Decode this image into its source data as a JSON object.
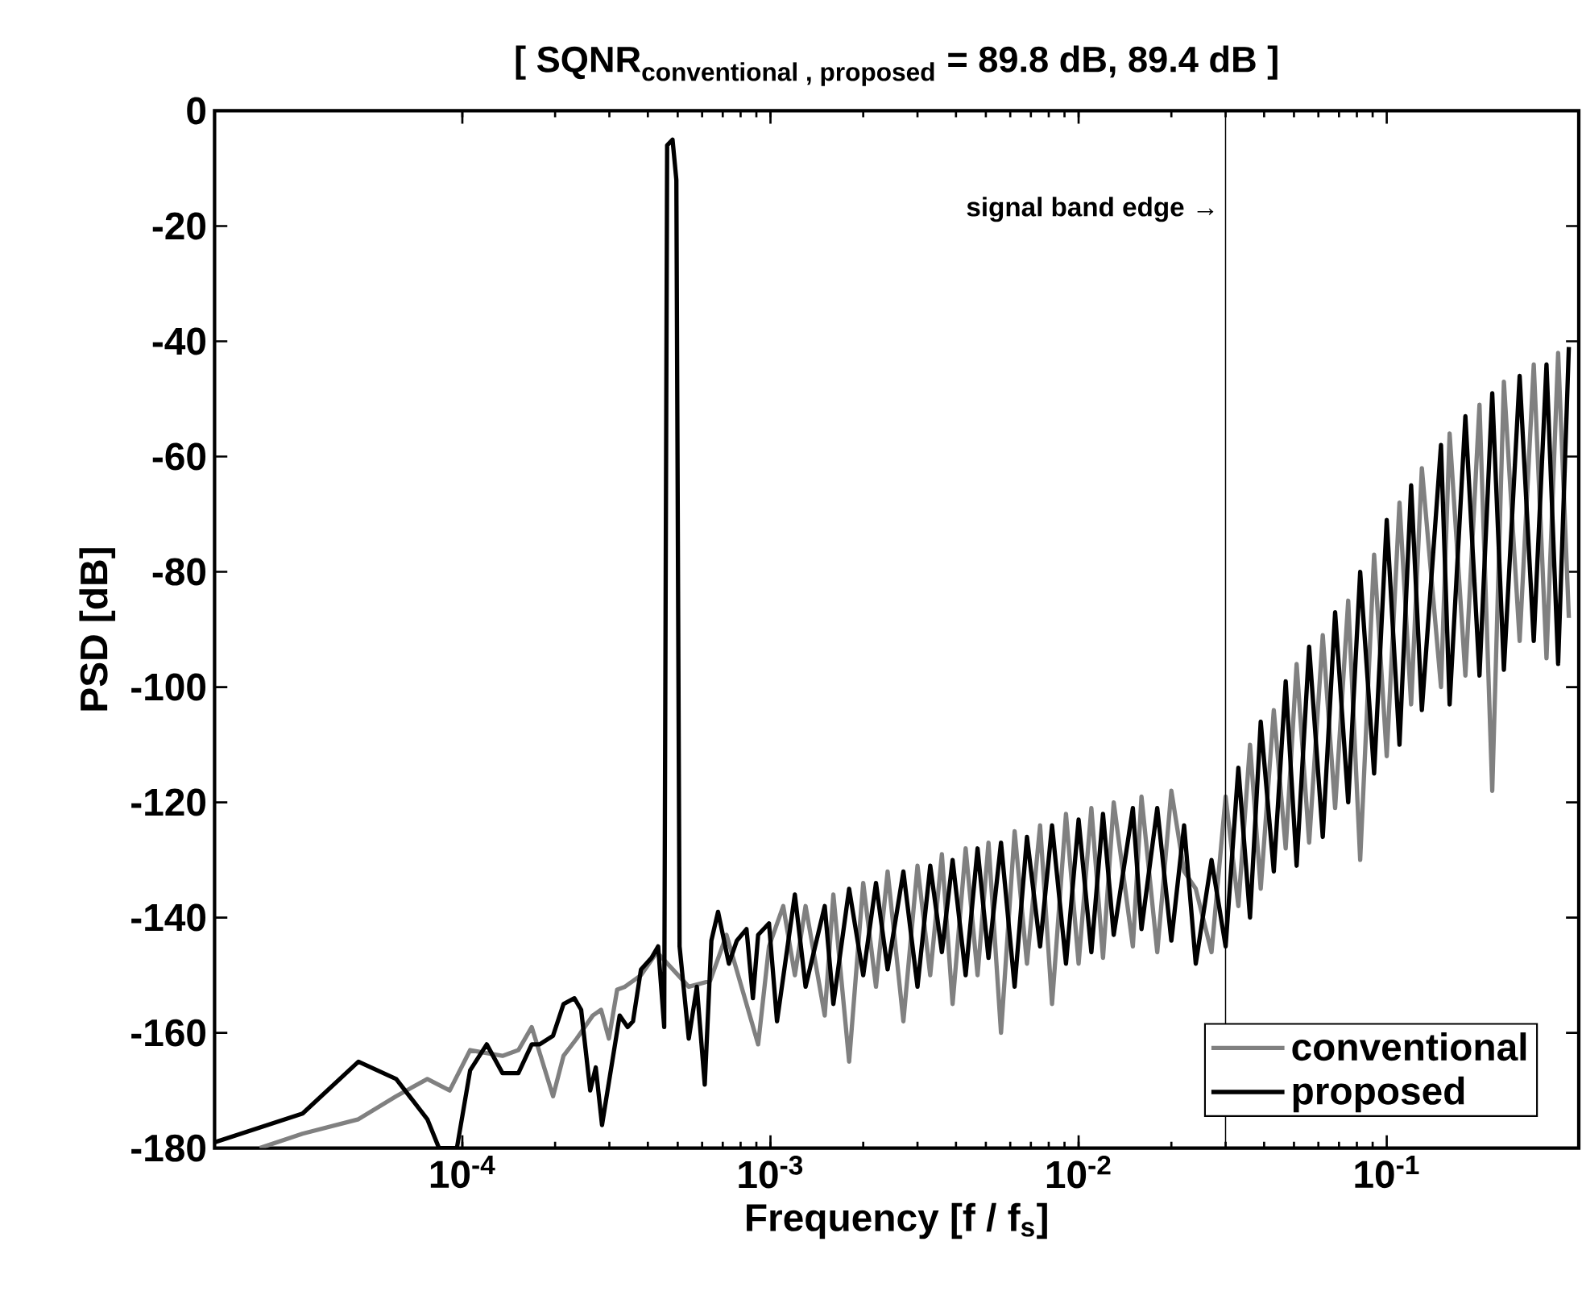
{
  "chart_data": {
    "type": "line",
    "title": "\\text{[ SQNR}_{\\text{conventional , proposed}}\\text{ = 89.8 dB, 89.4 dB ]}",
    "xlabel": "Frequency  [f / f$_{s}$]",
    "ylabel": "PSD  [dB]",
    "log": "x",
    "grid": false,
    "legend": "bottom right",
    "marker": "none",
    "line_style": "solid",
    "xlim": [
      1.57e-05,
      0.42
    ],
    "ylim": [
      -180,
      0
    ],
    "xticks": [
      {
        "value": 0.0001,
        "label": "10$^{-4}$"
      },
      {
        "value": 0.001,
        "label": "10$^{-3}$"
      },
      {
        "value": 0.01,
        "label": "10$^{-2}$"
      },
      {
        "value": 0.1,
        "label": "10$^{-1}$"
      }
    ],
    "yticks": [
      0,
      -20,
      -40,
      -60,
      -80,
      -100,
      -120,
      -140,
      -160,
      -180
    ],
    "ref_lines": [
      {
        "axis": "x",
        "value": 0.03,
        "label": "signal band edge →",
        "color": "#000000"
      }
    ],
    "series": [
      {
        "name": "conventional",
        "color": "#808080",
        "x": [
          2.2e-05,
          3.03e-05,
          4.6e-05,
          6.1e-05,
          7.7e-05,
          9.1e-05,
          0.000106,
          0.000135,
          0.000152,
          0.000168,
          0.000197,
          0.000213,
          0.000235,
          0.000265,
          0.000282,
          0.000299,
          0.000318,
          0.000337,
          0.00038,
          0.000428,
          0.000543,
          0.000637,
          0.00072,
          0.000912,
          0.000989,
          0.0011,
          0.0012,
          0.0013,
          0.0015,
          0.0016,
          0.0018,
          0.002,
          0.0022,
          0.0024,
          0.0027,
          0.003,
          0.0033,
          0.0036,
          0.0039,
          0.0043,
          0.0047,
          0.0051,
          0.0056,
          0.0062,
          0.0068,
          0.0075,
          0.0082,
          0.0091,
          0.01,
          0.011,
          0.012,
          0.013,
          0.015,
          0.016,
          0.018,
          0.02,
          0.022,
          0.024,
          0.027,
          0.03,
          0.033,
          0.036,
          0.039,
          0.043,
          0.047,
          0.051,
          0.056,
          0.062,
          0.068,
          0.075,
          0.082,
          0.091,
          0.1,
          0.11,
          0.12,
          0.13,
          0.15,
          0.16,
          0.18,
          0.2,
          0.22,
          0.24,
          0.27,
          0.3,
          0.33,
          0.36,
          0.39
        ],
        "values": [
          -180,
          -177.5,
          -175,
          -171,
          -168,
          -170,
          -163,
          -164,
          -163,
          -159,
          -171,
          -164,
          -161,
          -157,
          -156,
          -161,
          -152.5,
          -152,
          -150,
          -146,
          -152,
          -151,
          -143,
          -162,
          -145,
          -138,
          -150,
          -138,
          -157,
          -136,
          -165,
          -134,
          -152,
          -132,
          -158,
          -131,
          -150,
          -129,
          -155,
          -128,
          -150,
          -127,
          -160,
          -125,
          -148,
          -124,
          -155,
          -122,
          -148,
          -121,
          -147,
          -120,
          -145,
          -119,
          -146,
          -118,
          -132,
          -135,
          -146,
          -119,
          -138,
          -110,
          -135,
          -104,
          -128,
          -96,
          -127,
          -91,
          -121,
          -85,
          -130,
          -77,
          -112,
          -68,
          -103,
          -62,
          -100,
          -56,
          -98,
          -51,
          -118,
          -47,
          -92,
          -44,
          -95,
          -42,
          -88
        ]
      },
      {
        "name": "proposed",
        "color": "#000000",
        "x": [
          1.57e-05,
          3.03e-05,
          4.6e-05,
          6.1e-05,
          7.7e-05,
          8.4e-05,
          9.6e-05,
          0.000106,
          0.00012,
          0.000135,
          0.000152,
          0.000168,
          0.000178,
          0.000197,
          0.000213,
          0.000231,
          0.000243,
          0.00026,
          0.000271,
          0.000284,
          0.000324,
          0.000344,
          0.000358,
          0.00038,
          0.000411,
          0.000432,
          0.000452,
          0.000462,
          0.000481,
          0.000495,
          0.000507,
          0.000543,
          0.000577,
          0.000612,
          0.000643,
          0.000676,
          0.000733,
          0.000778,
          0.000836,
          0.000877,
          0.000912,
          0.000989,
          0.00105,
          0.0012,
          0.0013,
          0.0015,
          0.0016,
          0.0018,
          0.002,
          0.0022,
          0.0024,
          0.0027,
          0.003,
          0.0033,
          0.0036,
          0.0039,
          0.0043,
          0.0047,
          0.0051,
          0.0056,
          0.0062,
          0.0068,
          0.0075,
          0.0082,
          0.0091,
          0.01,
          0.011,
          0.012,
          0.013,
          0.015,
          0.016,
          0.018,
          0.02,
          0.022,
          0.024,
          0.027,
          0.03,
          0.033,
          0.036,
          0.039,
          0.043,
          0.047,
          0.051,
          0.056,
          0.062,
          0.068,
          0.075,
          0.082,
          0.091,
          0.1,
          0.11,
          0.12,
          0.13,
          0.15,
          0.16,
          0.18,
          0.2,
          0.22,
          0.24,
          0.27,
          0.3,
          0.33,
          0.36,
          0.39
        ],
        "values": [
          -179,
          -174,
          -165,
          -168,
          -175,
          -180,
          -180,
          -166.5,
          -162,
          -167,
          -167,
          -162,
          -162,
          -160.5,
          -155,
          -154,
          -156,
          -170,
          -166,
          -176,
          -157,
          -159,
          -158,
          -149,
          -147,
          -145,
          -159,
          -6,
          -5,
          -12,
          -145,
          -161,
          -152,
          -169,
          -144,
          -139,
          -148,
          -144,
          -142,
          -154,
          -143,
          -141,
          -158,
          -136,
          -152,
          -138,
          -155,
          -135,
          -150,
          -134,
          -149,
          -132,
          -152,
          -131,
          -146,
          -130,
          -150,
          -128,
          -147,
          -127,
          -152,
          -126,
          -145,
          -124,
          -148,
          -123,
          -146,
          -122,
          -143,
          -121,
          -142,
          -121,
          -144,
          -124,
          -148,
          -130,
          -145,
          -114,
          -140,
          -106,
          -132,
          -99,
          -131,
          -93,
          -126,
          -87,
          -120,
          -80,
          -115,
          -71,
          -110,
          -65,
          -104,
          -58,
          -103,
          -53,
          -98,
          -49,
          -97,
          -46,
          -92,
          -44,
          -96,
          -41
        ]
      }
    ]
  }
}
